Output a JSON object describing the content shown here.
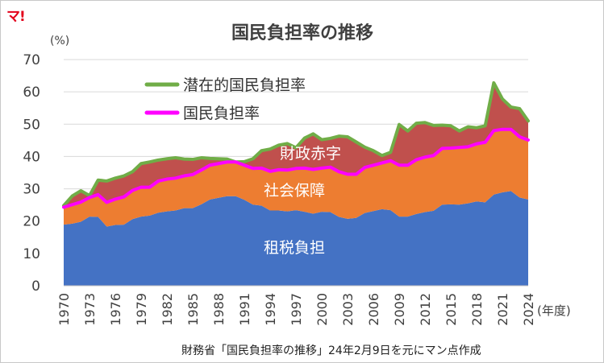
{
  "logo_text": "マ!",
  "chart_data": {
    "type": "area",
    "title": "国民負担率の推移",
    "ylabel": "(%)",
    "xlabel": "(年度)",
    "source": "財務省「国民負担率の推移」24年2月9日を元にマン点作成",
    "ylim": [
      0,
      70
    ],
    "yticks": [
      0,
      10,
      20,
      30,
      40,
      50,
      60,
      70
    ],
    "xticks": [
      1970,
      1973,
      1976,
      1979,
      1982,
      1985,
      1988,
      1991,
      1994,
      1997,
      2000,
      2003,
      2006,
      2009,
      2012,
      2015,
      2018,
      2021,
      2024
    ],
    "grid": "horizontal",
    "legend_position": "top-left",
    "x": [
      1970,
      1971,
      1972,
      1973,
      1974,
      1975,
      1976,
      1977,
      1978,
      1979,
      1980,
      1981,
      1982,
      1983,
      1984,
      1985,
      1986,
      1987,
      1988,
      1989,
      1990,
      1991,
      1992,
      1993,
      1994,
      1995,
      1996,
      1997,
      1998,
      1999,
      2000,
      2001,
      2002,
      2003,
      2004,
      2005,
      2006,
      2007,
      2008,
      2009,
      2010,
      2011,
      2012,
      2013,
      2014,
      2015,
      2016,
      2017,
      2018,
      2019,
      2020,
      2021,
      2022,
      2023,
      2024
    ],
    "series": [
      {
        "name": "租税負担",
        "color": "#4472c4",
        "values": [
          18.9,
          19.2,
          19.8,
          21.4,
          21.3,
          18.3,
          18.8,
          18.9,
          20.6,
          21.4,
          21.7,
          22.6,
          23.0,
          23.3,
          24.0,
          24.0,
          25.2,
          26.7,
          27.2,
          27.7,
          27.7,
          26.6,
          25.1,
          24.8,
          23.3,
          23.3,
          23.0,
          23.4,
          22.9,
          22.3,
          22.9,
          22.8,
          21.3,
          20.7,
          21.0,
          22.5,
          23.1,
          23.7,
          23.4,
          21.4,
          21.4,
          22.2,
          22.8,
          23.2,
          25.1,
          25.2,
          25.1,
          25.5,
          26.1,
          25.8,
          28.2,
          28.9,
          29.3,
          27.3,
          26.7
        ]
      },
      {
        "name": "社会保障",
        "color": "#ed7d31",
        "values": [
          5.4,
          5.9,
          6.1,
          5.9,
          6.9,
          7.5,
          8.0,
          8.6,
          8.9,
          9.1,
          8.8,
          9.8,
          10.0,
          10.0,
          10.0,
          10.4,
          10.6,
          10.6,
          10.6,
          10.6,
          10.6,
          10.7,
          11.2,
          11.6,
          12.1,
          12.6,
          12.8,
          12.9,
          13.5,
          13.7,
          13.5,
          13.9,
          14.0,
          13.8,
          13.5,
          14.1,
          14.2,
          14.3,
          15.3,
          15.9,
          15.9,
          16.8,
          17.0,
          17.1,
          17.4,
          17.4,
          17.7,
          17.5,
          17.8,
          18.6,
          19.8,
          19.5,
          19.1,
          18.8,
          18.4
        ]
      },
      {
        "name": "財政赤字",
        "color": "#c0504d",
        "values": [
          0.5,
          2.7,
          3.5,
          0.6,
          4.5,
          6.6,
          6.5,
          6.5,
          5.8,
          7.3,
          7.8,
          6.5,
          6.3,
          6.3,
          5.2,
          4.7,
          3.8,
          2.1,
          1.5,
          0.9,
          0.0,
          1.1,
          3.0,
          5.4,
          6.9,
          7.6,
          8.2,
          6.4,
          9.3,
          11.0,
          8.8,
          8.9,
          11.0,
          11.6,
          10.0,
          6.3,
          4.5,
          2.3,
          2.6,
          12.6,
          10.6,
          11.3,
          10.7,
          9.3,
          7.2,
          6.9,
          5.1,
          6.2,
          5.0,
          5.1,
          14.8,
          9.4,
          6.9,
          8.7,
          5.9
        ]
      }
    ],
    "lines": [
      {
        "name": "潜在的国民負担率",
        "color": "#70ad47",
        "values": [
          24.8,
          27.8,
          29.4,
          27.9,
          32.7,
          32.4,
          33.3,
          34.0,
          35.3,
          37.8,
          38.3,
          38.9,
          39.3,
          39.6,
          39.2,
          39.1,
          39.6,
          39.4,
          39.3,
          39.2,
          38.3,
          38.4,
          39.3,
          41.8,
          42.3,
          43.5,
          44.0,
          42.7,
          45.7,
          47.0,
          45.2,
          45.6,
          46.3,
          46.1,
          44.5,
          42.9,
          41.8,
          40.3,
          41.3,
          49.9,
          47.9,
          50.3,
          50.5,
          49.6,
          49.7,
          49.5,
          47.9,
          49.2,
          48.9,
          49.5,
          62.8,
          57.8,
          55.3,
          54.8,
          51.0
        ]
      },
      {
        "name": "国民負担率",
        "color": "#ff00ff",
        "values": [
          24.3,
          25.1,
          25.9,
          27.3,
          28.2,
          25.8,
          26.8,
          27.5,
          29.5,
          30.5,
          30.5,
          32.4,
          33.0,
          33.3,
          34.0,
          34.4,
          35.8,
          37.3,
          37.8,
          38.3,
          38.3,
          37.3,
          36.3,
          36.4,
          35.4,
          35.9,
          35.8,
          36.3,
          36.4,
          36.0,
          36.4,
          36.7,
          35.3,
          34.5,
          34.5,
          36.6,
          37.3,
          38.0,
          38.7,
          37.3,
          37.3,
          39.0,
          39.8,
          40.3,
          42.5,
          42.6,
          42.8,
          43.0,
          43.9,
          44.4,
          48.0,
          48.4,
          48.4,
          46.1,
          45.1
        ]
      }
    ],
    "area_labels": [
      "財政赤字",
      "社会保障",
      "租税負担"
    ]
  }
}
